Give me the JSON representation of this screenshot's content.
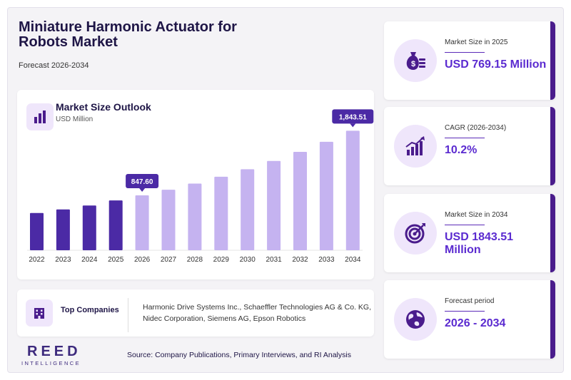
{
  "header": {
    "title": "Miniature Harmonic Actuator for Robots Market",
    "subtitle": "Forecast 2026-2034"
  },
  "chart_card": {
    "title": "Market Size Outlook",
    "unit": "USD Million",
    "icon": "bar-chart-icon"
  },
  "chart_data": {
    "type": "bar",
    "categories": [
      "2022",
      "2023",
      "2024",
      "2025",
      "2026",
      "2027",
      "2028",
      "2029",
      "2030",
      "2031",
      "2032",
      "2033",
      "2034"
    ],
    "values": [
      575,
      630,
      690,
      769.15,
      847.6,
      934,
      1029,
      1134,
      1250,
      1378,
      1518,
      1673,
      1843.51
    ],
    "labeled": {
      "2026": "847.60",
      "2034": "1,843.51"
    },
    "ylim": [
      0,
      2200
    ],
    "historical_color": "#4b2aa5",
    "forecast_color": "#c5b3f0",
    "callout_color": "#4b2aa5",
    "grid": false
  },
  "companies": {
    "label": "Top Companies",
    "text": "Harmonic Drive Systems Inc., Schaeffler Technologies AG & Co. KG, Nidec Corporation, Siemens AG, Epson Robotics",
    "icon": "building-icon"
  },
  "logo": {
    "main": "REED",
    "sub": "INTELLIGENCE"
  },
  "source": "Source: Company Publications, Primary Interviews, and RI Analysis",
  "kpis": [
    {
      "label": "Market Size in 2025",
      "value": "USD 769.15 Million",
      "icon": "money-bag-icon"
    },
    {
      "label": "CAGR (2026-2034)",
      "value": "10.2%",
      "icon": "growth-chart-icon"
    },
    {
      "label": "Market Size in 2034",
      "value": "USD 1843.51 Million",
      "icon": "target-icon"
    },
    {
      "label": "Forecast period",
      "value": "2026 - 2034",
      "icon": "globe-icon"
    }
  ],
  "colors": {
    "accent": "#4a1c8c",
    "value_text": "#5b2bd0",
    "title": "#1e1546"
  }
}
